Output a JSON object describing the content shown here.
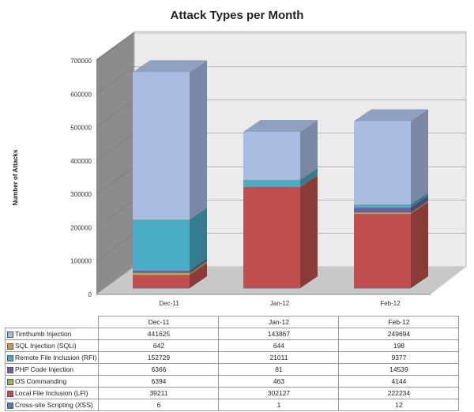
{
  "chart_data": {
    "type": "bar",
    "stacked": true,
    "three_d": true,
    "title": "Attack Types per Month",
    "xlabel": "",
    "ylabel": "Number of Attacks",
    "ylim": [
      0,
      700000
    ],
    "yticks": [
      "0",
      "100000",
      "200000",
      "300000",
      "400000",
      "500000",
      "600000",
      "700000"
    ],
    "grid": true,
    "legend": "data-table-below",
    "categories": [
      "Dec-11",
      "Jan-12",
      "Feb-12"
    ],
    "series": [
      {
        "name": "Cross-site Scripting (XSS)",
        "color": "#4f81bd",
        "values": [
          6,
          1,
          12
        ]
      },
      {
        "name": "Local File Inclusion (LFI)",
        "color": "#c0504d",
        "values": [
          39211,
          302127,
          222234
        ]
      },
      {
        "name": "OS Commanding",
        "color": "#9bbb59",
        "values": [
          6394,
          463,
          4144
        ]
      },
      {
        "name": "PHP Code Injection",
        "color": "#6b5fa8",
        "values": [
          6366,
          81,
          14539
        ]
      },
      {
        "name": "Remote File Inclusion (RFI)",
        "color": "#4bacc6",
        "values": [
          152729,
          21011,
          9377
        ]
      },
      {
        "name": "SQL Injection (SQLi)",
        "color": "#e0913c",
        "values": [
          642,
          644,
          198
        ]
      },
      {
        "name": "Timthumb Injection",
        "color": "#a9bde2",
        "values": [
          441625,
          143867,
          249694
        ]
      }
    ]
  }
}
